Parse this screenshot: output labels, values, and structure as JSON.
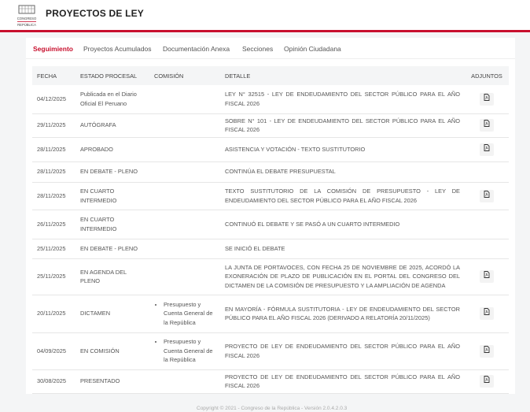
{
  "header": {
    "title": "PROYECTOS DE LEY",
    "logo_text": "CONGRESO REPÚBLICA"
  },
  "tabs": [
    {
      "label": "Seguimiento",
      "active": true
    },
    {
      "label": "Proyectos Acumulados"
    },
    {
      "label": "Documentación Anexa"
    },
    {
      "label": "Secciones"
    },
    {
      "label": "Opinión Ciudadana"
    }
  ],
  "table": {
    "columns": [
      "FECHA",
      "ESTADO PROCESAL",
      "COMISIÓN",
      "DETALLE",
      "ADJUNTOS"
    ],
    "rows": [
      {
        "fecha": "04/12/2025",
        "estado": "Publicada en el Diario Oficial El Peruano",
        "comision": "",
        "detalle": "LEY N° 32515 - LEY DE ENDEUDAMIENTO DEL SECTOR PÚBLICO PARA EL AÑO FISCAL 2026",
        "adjunto": "pdf-icon"
      },
      {
        "fecha": "29/11/2025",
        "estado": "AUTÓGRAFA",
        "comision": "",
        "detalle": "SOBRE N° 101 - LEY DE ENDEUDAMIENTO DEL SECTOR PÚBLICO PARA EL AÑO FISCAL 2026",
        "adjunto": "pdf-icon"
      },
      {
        "fecha": "28/11/2025",
        "estado": "APROBADO",
        "comision": "",
        "detalle": "ASISTENCIA Y VOTACIÓN - TEXTO SUSTITUTORIO",
        "adjunto": "pdf-icon"
      },
      {
        "fecha": "28/11/2025",
        "estado": "EN DEBATE - PLENO",
        "comision": "",
        "detalle": "CONTINÚA EL DEBATE PRESUPUESTAL",
        "adjunto": ""
      },
      {
        "fecha": "28/11/2025",
        "estado": "EN CUARTO INTERMEDIO",
        "comision": "",
        "detalle": "TEXTO SUSTITUTORIO DE LA COMISIÓN DE PRESUPUESTO - LEY DE ENDEUDAMIENTO DEL SECTOR PÚBLICO PARA EL AÑO FISCAL 2026",
        "adjunto": "pdf-icon"
      },
      {
        "fecha": "26/11/2025",
        "estado": "EN CUARTO INTERMEDIO",
        "comision": "",
        "detalle": "CONTINUÓ EL DEBATE Y SE PASÓ A UN CUARTO INTERMEDIO",
        "adjunto": ""
      },
      {
        "fecha": "25/11/2025",
        "estado": "EN DEBATE - PLENO",
        "comision": "",
        "detalle": "SE INICIÓ EL DEBATE",
        "adjunto": ""
      },
      {
        "fecha": "25/11/2025",
        "estado": "EN AGENDA DEL PLENO",
        "comision": "",
        "detalle": "LA JUNTA DE PORTAVOCES, CON FECHA 25 DE NOVIEMBRE DE 2025, ACORDÓ LA EXONERACIÓN DE PLAZO DE PUBLICACIÓN EN EL PORTAL DEL CONGRESO DEL DICTAMEN DE LA COMISIÓN DE PRESUPUESTO Y LA AMPLIACIÓN DE AGENDA",
        "adjunto": "pdf-icon"
      },
      {
        "fecha": "20/11/2025",
        "estado": "DICTAMEN",
        "comision": "Presupuesto y Cuenta General de la República",
        "detalle": "EN MAYORÍA - FÓRMULA SUSTITUTORIA - LEY DE ENDEUDAMIENTO DEL SECTOR PÚBLICO PARA EL AÑO FISCAL 2026 (DERIVADO A RELATORÍA 20/11/2025)",
        "adjunto": "pdf-icon"
      },
      {
        "fecha": "04/09/2025",
        "estado": "EN COMISIÓN",
        "comision": "Presupuesto y Cuenta General de la República",
        "detalle": "PROYECTO DE LEY DE ENDEUDAMIENTO DEL SECTOR PÚBLICO PARA EL AÑO FISCAL 2026",
        "adjunto": "pdf-icon"
      },
      {
        "fecha": "30/08/2025",
        "estado": "PRESENTADO",
        "comision": "",
        "detalle": "PROYECTO DE LEY DE ENDEUDAMIENTO DEL SECTOR PÚBLICO PARA EL AÑO FISCAL 2026",
        "adjunto": "pdf-icon"
      }
    ]
  },
  "footer": "Copyright © 2021 - Congreso de la República - Versión 2.0.4.2.0.3",
  "colors": {
    "accent": "#c8102e"
  }
}
